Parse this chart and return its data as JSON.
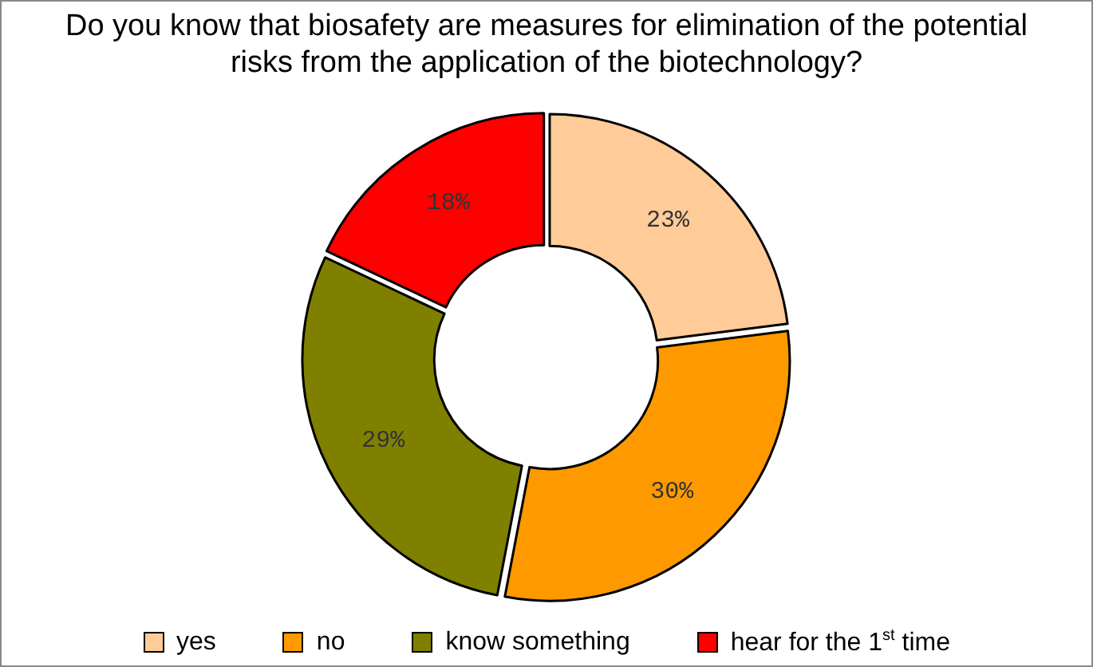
{
  "chart_data": {
    "type": "donut",
    "title": "Do you know that biosafety are measures for elimination of the potential risks from the application of the biotechnology?",
    "categories": [
      "yes",
      "no",
      "know something",
      "hear for the 1$^{st}$ time"
    ],
    "values": [
      23,
      30,
      29,
      18
    ],
    "value_labels": [
      "23%",
      "30%",
      "29%",
      "18%"
    ],
    "colors": [
      "#ffcc99",
      "#ff9900",
      "#808000",
      "#ff0000"
    ],
    "legend": "bottom"
  }
}
